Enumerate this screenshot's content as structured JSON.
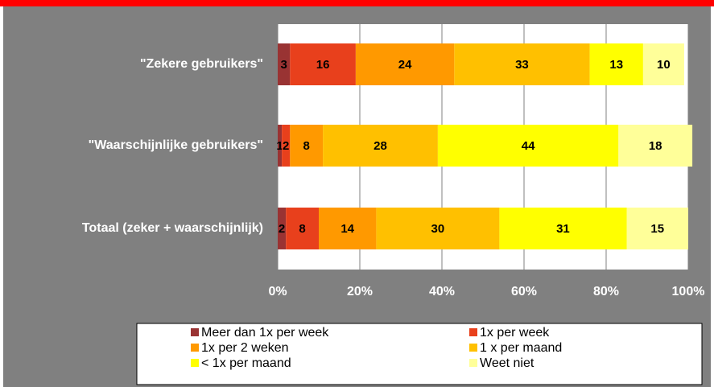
{
  "chart_data": {
    "type": "hbar-stacked",
    "categories": [
      "\"Zekere gebruikers\"",
      "\"Waarschijnlijke gebruikers\"",
      "Totaal (zeker + waarschijnlijk)"
    ],
    "series": [
      {
        "name": "Meer dan 1x per week",
        "color": "#993333",
        "values": [
          3,
          1,
          2
        ]
      },
      {
        "name": "1x per week",
        "color": "#e8401c",
        "values": [
          16,
          2,
          8
        ]
      },
      {
        "name": "1x per 2 weken",
        "color": "#ff9900",
        "values": [
          24,
          8,
          14
        ]
      },
      {
        "name": "1 x per maand",
        "color": "#ffc000",
        "values": [
          33,
          28,
          30
        ]
      },
      {
        "name": "< 1x per maand",
        "color": "#ffff00",
        "values": [
          13,
          44,
          31
        ]
      },
      {
        "name": "Weet niet",
        "color": "#ffff99",
        "values": [
          10,
          18,
          15
        ]
      }
    ],
    "xlim": [
      0,
      100
    ],
    "xticks": [
      {
        "value": 0,
        "label": "0%"
      },
      {
        "value": 20,
        "label": "20%"
      },
      {
        "value": 40,
        "label": "40%"
      },
      {
        "value": 60,
        "label": "60%"
      },
      {
        "value": 80,
        "label": "80%"
      },
      {
        "value": 100,
        "label": "100%"
      }
    ],
    "grid": true
  }
}
